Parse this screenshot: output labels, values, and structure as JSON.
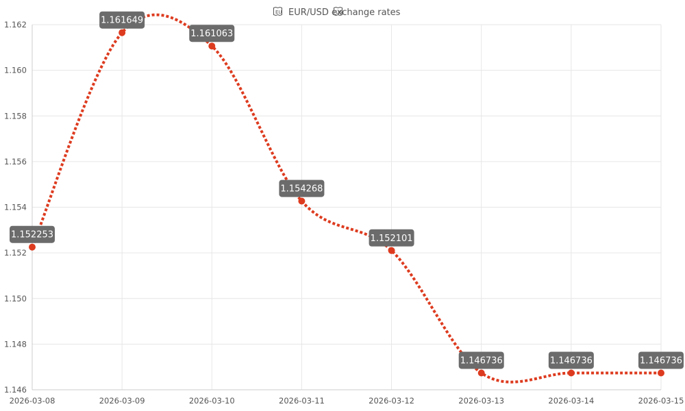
{
  "title": "EUR/USD exchange rates",
  "title_icons": [
    "eu-flag-icon",
    "us-flag-icon"
  ],
  "colors": {
    "line": "#dd3b1f",
    "label_bg": "#6b6b6b",
    "label_text": "#ffffff",
    "grid": "#e6e6e6",
    "text": "#555555"
  },
  "chart_data": {
    "type": "line",
    "title": "EUR/USD exchange rates",
    "x": [
      "2026-03-08",
      "2026-03-09",
      "2026-03-10",
      "2026-03-11",
      "2026-03-12",
      "2026-03-13",
      "2026-03-14",
      "2026-03-15"
    ],
    "series": [
      {
        "values": [
          1.152253,
          1.161649,
          1.161063,
          1.154268,
          1.152101,
          1.146736,
          1.146736,
          1.146736
        ],
        "labels": [
          "1.152253",
          "1.161649",
          "1.161063",
          "1.154268",
          "1.152101",
          "1.146736",
          "1.146736",
          "1.146736"
        ]
      }
    ],
    "ylim": [
      1.146,
      1.162
    ],
    "yticks": [
      "1.146",
      "1.148",
      "1.150",
      "1.152",
      "1.154",
      "1.156",
      "1.158",
      "1.160",
      "1.162"
    ],
    "grid": true,
    "line_style": "dotted",
    "smooth": true,
    "data_labels": true
  }
}
